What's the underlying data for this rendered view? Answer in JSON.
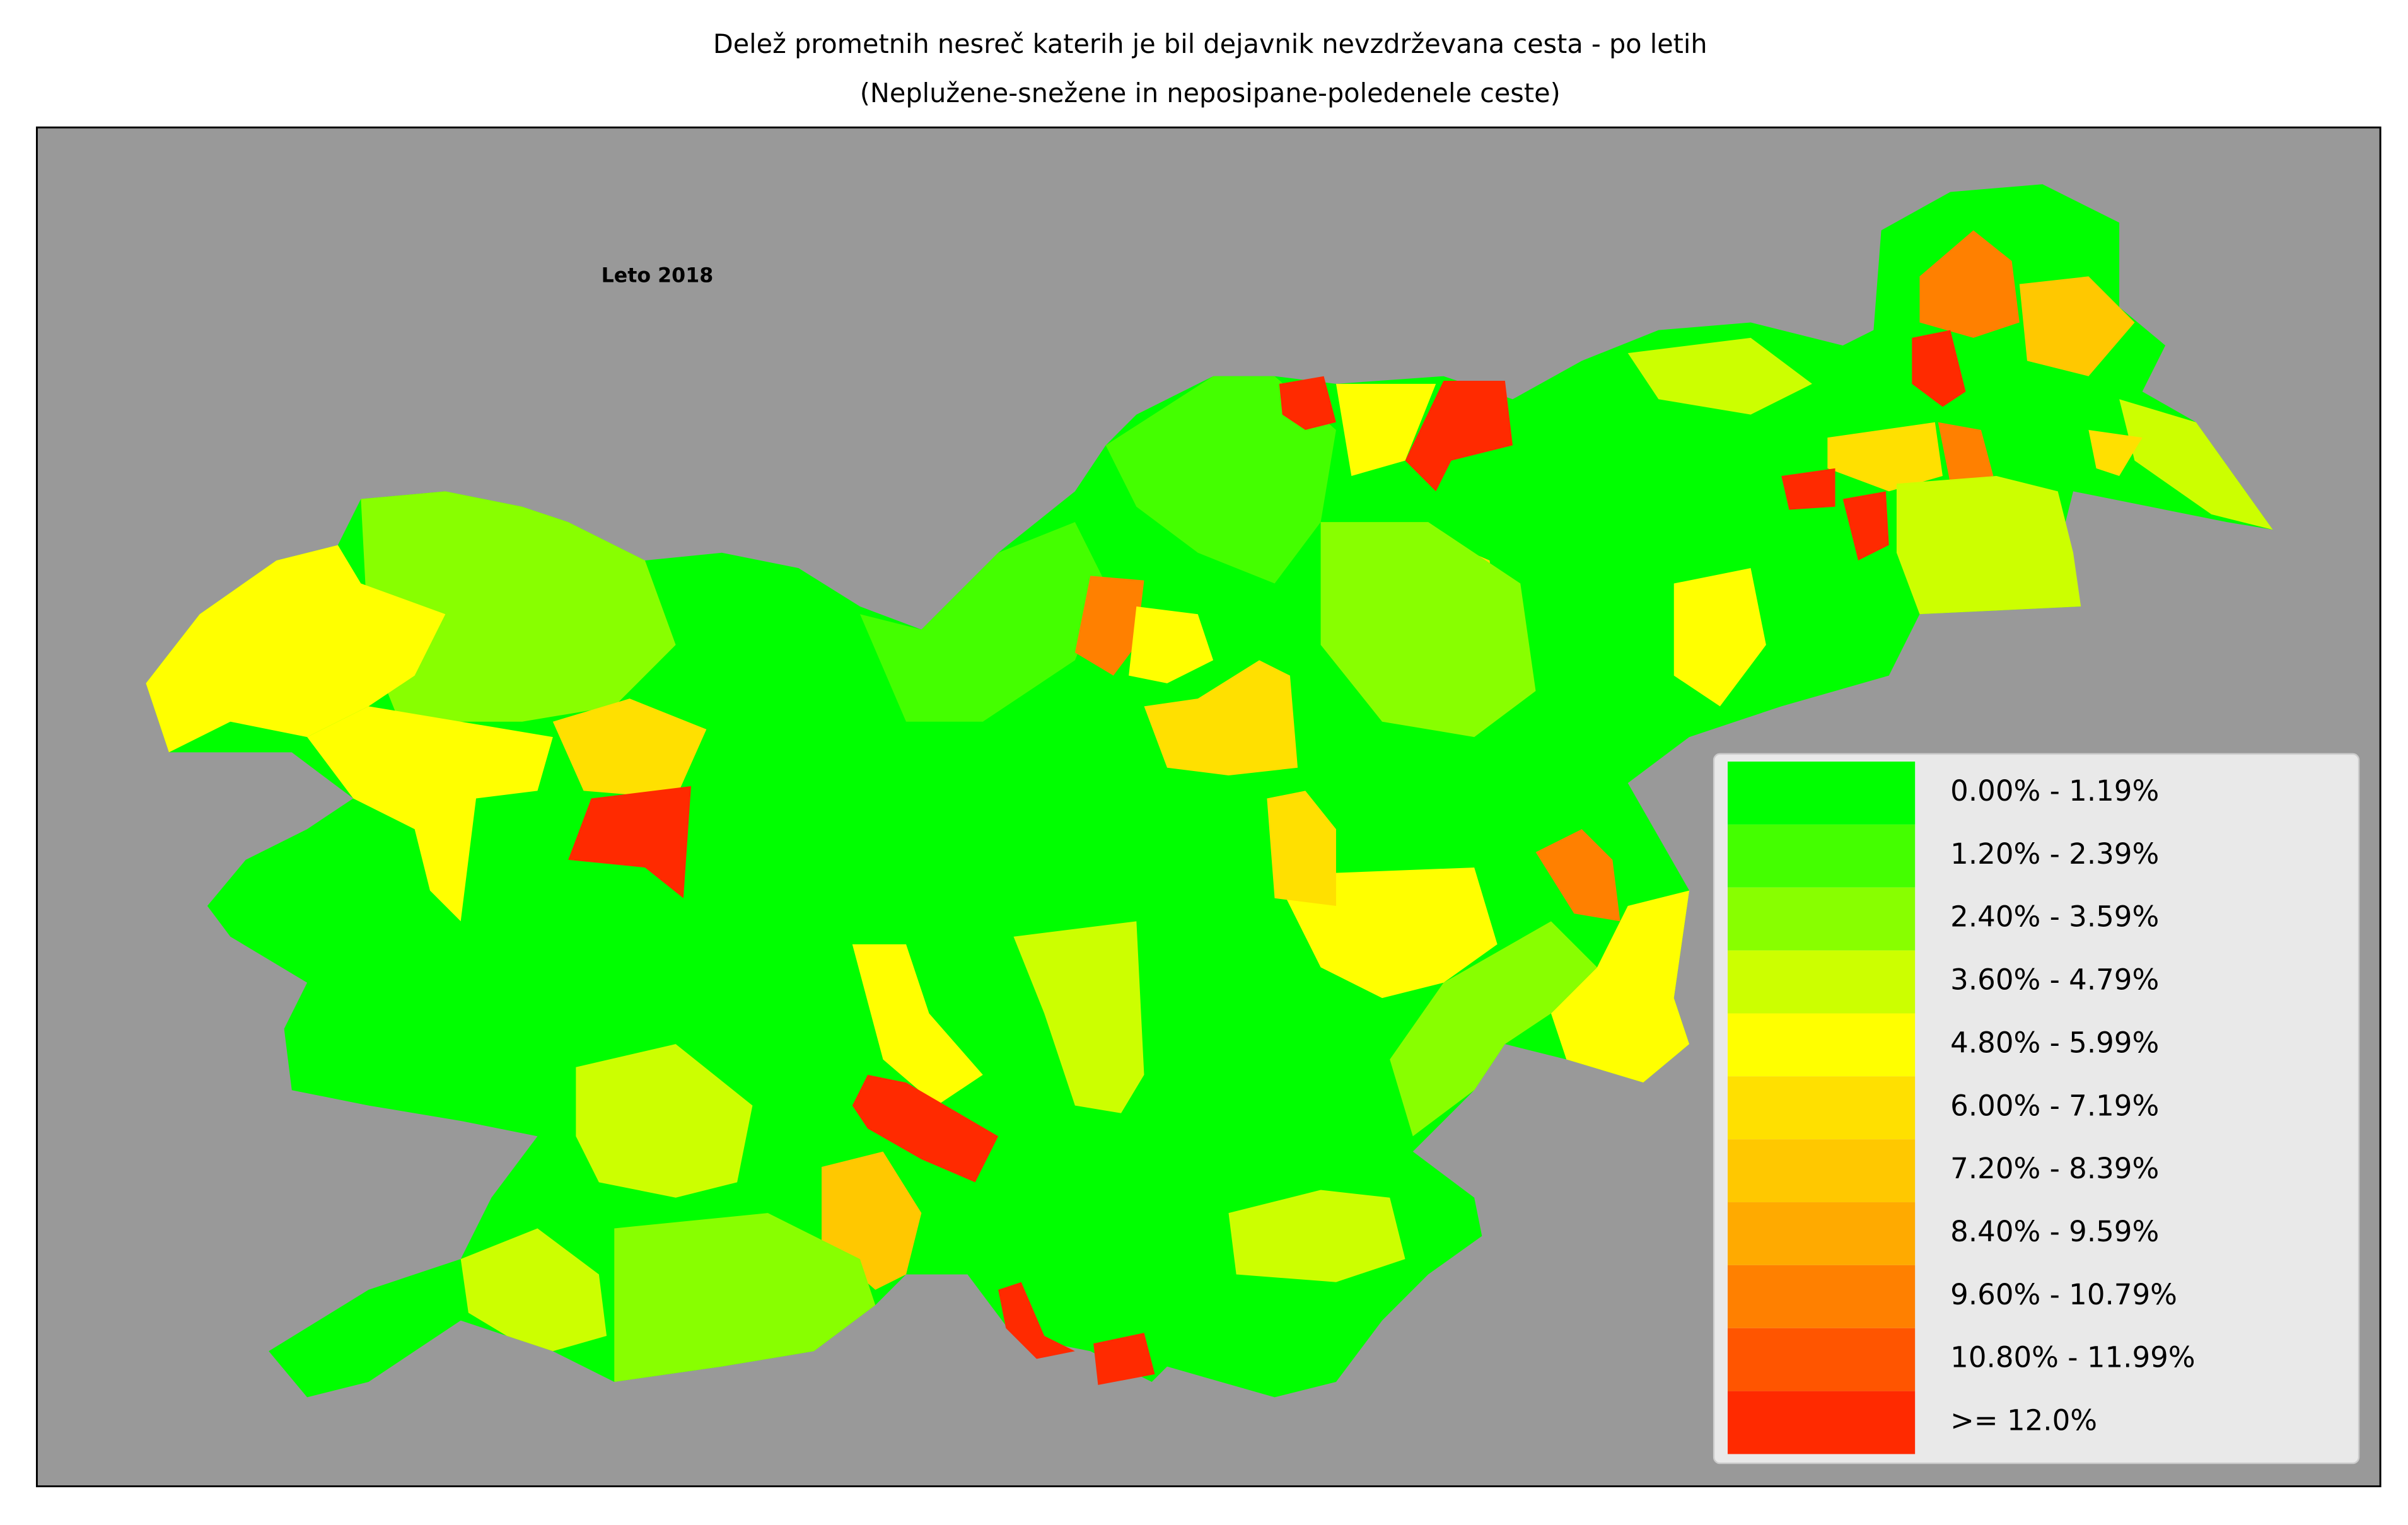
{
  "title": "Delež prometnih nesreč katerih je bil dejavnik nevzdrževana cesta - po letih",
  "subtitle": "(Neplužene-snežene in neposipane-poledenele ceste)",
  "annotation": "Leto 2018",
  "legend": {
    "items": [
      {
        "label": "0.00% - 1.19%",
        "color": "#00ff00"
      },
      {
        "label": "1.20% - 2.39%",
        "color": "#44ff00"
      },
      {
        "label": "2.40% - 3.59%",
        "color": "#88ff00"
      },
      {
        "label": "3.60% - 4.79%",
        "color": "#ccff00"
      },
      {
        "label": "4.80% - 5.99%",
        "color": "#ffff00"
      },
      {
        "label": "6.00% - 7.19%",
        "color": "#ffe000"
      },
      {
        "label": "7.20% - 8.39%",
        "color": "#ffc800"
      },
      {
        "label": "8.40% - 9.59%",
        "color": "#ffaa00"
      },
      {
        "label": "9.60% - 10.79%",
        "color": "#ff8000"
      },
      {
        "label": "10.80% - 11.99%",
        "color": "#ff5500"
      },
      {
        "label": ">= 12.0%",
        "color": "#ff2a00"
      }
    ]
  }
}
